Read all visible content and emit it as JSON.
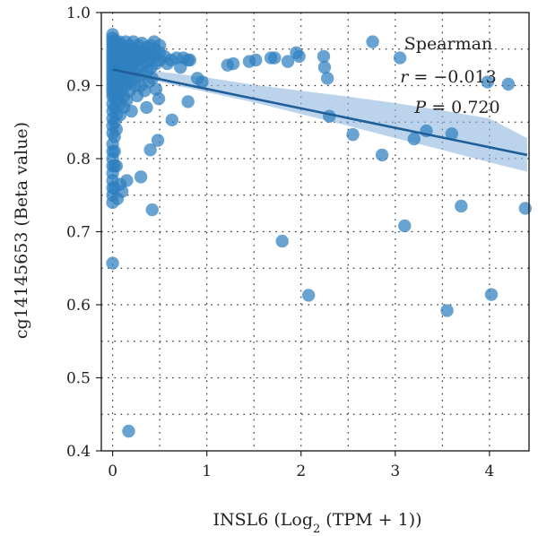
{
  "chart_data": {
    "type": "scatter",
    "xlabel": "INSL6 (Log",
    "xlabel_sub": "2",
    "xlabel_tail": " (TPM + 1))",
    "ylabel": "cg14145653 (Beta value)",
    "xlim": [
      -0.12,
      4.42
    ],
    "ylim": [
      0.4,
      1.0
    ],
    "x_ticks": [
      0,
      1,
      2,
      3,
      4
    ],
    "x_tick_labels": [
      "0",
      "1",
      "2",
      "3",
      "4"
    ],
    "y_ticks": [
      0.4,
      0.5,
      0.6,
      0.7,
      0.8,
      0.9,
      1.0
    ],
    "y_tick_labels": [
      "0.4",
      "0.5",
      "0.6",
      "0.7",
      "0.8",
      "0.9",
      "1.0"
    ],
    "grid": true,
    "annotation": {
      "title": "Spearman",
      "r_label": "r",
      "r_value": " = −0.013",
      "p_label": "P",
      "p_value": " = 0.720"
    },
    "point_color": "#2f7fbf",
    "line_color": "#1f5f99",
    "band_color": "#8fb8de",
    "fit_line": {
      "x": [
        0.0,
        4.4
      ],
      "y": [
        0.922,
        0.805
      ]
    },
    "confidence_band": {
      "x": [
        0.0,
        0.5,
        1.0,
        1.5,
        2.0,
        2.5,
        3.0,
        3.5,
        4.0,
        4.4
      ],
      "lower": [
        0.915,
        0.905,
        0.891,
        0.877,
        0.861,
        0.845,
        0.828,
        0.812,
        0.795,
        0.782
      ],
      "upper": [
        0.929,
        0.919,
        0.911,
        0.901,
        0.893,
        0.885,
        0.876,
        0.866,
        0.855,
        0.828
      ]
    },
    "points": [
      [
        0.0,
        0.97
      ],
      [
        0.0,
        0.965
      ],
      [
        0.0,
        0.96
      ],
      [
        0.0,
        0.955
      ],
      [
        0.0,
        0.95
      ],
      [
        0.0,
        0.945
      ],
      [
        0.0,
        0.94
      ],
      [
        0.0,
        0.935
      ],
      [
        0.0,
        0.93
      ],
      [
        0.0,
        0.925
      ],
      [
        0.0,
        0.92
      ],
      [
        0.0,
        0.915
      ],
      [
        0.0,
        0.91
      ],
      [
        0.0,
        0.905
      ],
      [
        0.0,
        0.9
      ],
      [
        0.0,
        0.895
      ],
      [
        0.0,
        0.89
      ],
      [
        0.0,
        0.885
      ],
      [
        0.0,
        0.875
      ],
      [
        0.0,
        0.865
      ],
      [
        0.0,
        0.855
      ],
      [
        0.0,
        0.845
      ],
      [
        0.0,
        0.835
      ],
      [
        0.0,
        0.82
      ],
      [
        0.0,
        0.81
      ],
      [
        0.0,
        0.8
      ],
      [
        0.0,
        0.79
      ],
      [
        0.0,
        0.78
      ],
      [
        0.0,
        0.77
      ],
      [
        0.0,
        0.76
      ],
      [
        0.0,
        0.75
      ],
      [
        0.0,
        0.74
      ],
      [
        0.0,
        0.657
      ],
      [
        0.02,
        0.962
      ],
      [
        0.02,
        0.95
      ],
      [
        0.02,
        0.94
      ],
      [
        0.02,
        0.93
      ],
      [
        0.02,
        0.92
      ],
      [
        0.02,
        0.91
      ],
      [
        0.02,
        0.9
      ],
      [
        0.02,
        0.885
      ],
      [
        0.02,
        0.87
      ],
      [
        0.02,
        0.85
      ],
      [
        0.02,
        0.83
      ],
      [
        0.02,
        0.81
      ],
      [
        0.02,
        0.79
      ],
      [
        0.02,
        0.76
      ],
      [
        0.04,
        0.958
      ],
      [
        0.04,
        0.945
      ],
      [
        0.04,
        0.935
      ],
      [
        0.04,
        0.925
      ],
      [
        0.04,
        0.915
      ],
      [
        0.04,
        0.905
      ],
      [
        0.04,
        0.895
      ],
      [
        0.04,
        0.88
      ],
      [
        0.04,
        0.86
      ],
      [
        0.04,
        0.84
      ],
      [
        0.04,
        0.79
      ],
      [
        0.05,
        0.745
      ],
      [
        0.07,
        0.96
      ],
      [
        0.07,
        0.95
      ],
      [
        0.07,
        0.94
      ],
      [
        0.07,
        0.93
      ],
      [
        0.07,
        0.92
      ],
      [
        0.07,
        0.91
      ],
      [
        0.07,
        0.9
      ],
      [
        0.07,
        0.89
      ],
      [
        0.08,
        0.875
      ],
      [
        0.08,
        0.86
      ],
      [
        0.08,
        0.765
      ],
      [
        0.1,
        0.755
      ],
      [
        0.1,
        0.955
      ],
      [
        0.1,
        0.945
      ],
      [
        0.1,
        0.935
      ],
      [
        0.1,
        0.925
      ],
      [
        0.1,
        0.915
      ],
      [
        0.1,
        0.905
      ],
      [
        0.1,
        0.895
      ],
      [
        0.12,
        0.885
      ],
      [
        0.12,
        0.87
      ],
      [
        0.14,
        0.96
      ],
      [
        0.14,
        0.95
      ],
      [
        0.14,
        0.94
      ],
      [
        0.14,
        0.93
      ],
      [
        0.14,
        0.92
      ],
      [
        0.14,
        0.91
      ],
      [
        0.14,
        0.9
      ],
      [
        0.15,
        0.88
      ],
      [
        0.15,
        0.77
      ],
      [
        0.17,
        0.427
      ],
      [
        0.18,
        0.955
      ],
      [
        0.18,
        0.945
      ],
      [
        0.18,
        0.935
      ],
      [
        0.18,
        0.925
      ],
      [
        0.18,
        0.915
      ],
      [
        0.18,
        0.905
      ],
      [
        0.18,
        0.893
      ],
      [
        0.2,
        0.865
      ],
      [
        0.22,
        0.96
      ],
      [
        0.22,
        0.95
      ],
      [
        0.22,
        0.94
      ],
      [
        0.22,
        0.93
      ],
      [
        0.22,
        0.92
      ],
      [
        0.22,
        0.91
      ],
      [
        0.24,
        0.9
      ],
      [
        0.26,
        0.886
      ],
      [
        0.27,
        0.955
      ],
      [
        0.27,
        0.945
      ],
      [
        0.27,
        0.935
      ],
      [
        0.27,
        0.925
      ],
      [
        0.27,
        0.912
      ],
      [
        0.3,
        0.9
      ],
      [
        0.3,
        0.775
      ],
      [
        0.31,
        0.958
      ],
      [
        0.31,
        0.948
      ],
      [
        0.31,
        0.938
      ],
      [
        0.31,
        0.928
      ],
      [
        0.32,
        0.915
      ],
      [
        0.34,
        0.893
      ],
      [
        0.36,
        0.87
      ],
      [
        0.36,
        0.952
      ],
      [
        0.36,
        0.942
      ],
      [
        0.36,
        0.932
      ],
      [
        0.37,
        0.92
      ],
      [
        0.38,
        0.905
      ],
      [
        0.4,
        0.955
      ],
      [
        0.4,
        0.945
      ],
      [
        0.4,
        0.935
      ],
      [
        0.41,
        0.925
      ],
      [
        0.4,
        0.812
      ],
      [
        0.42,
        0.91
      ],
      [
        0.42,
        0.73
      ],
      [
        0.44,
        0.96
      ],
      [
        0.44,
        0.95
      ],
      [
        0.45,
        0.94
      ],
      [
        0.46,
        0.93
      ],
      [
        0.46,
        0.895
      ],
      [
        0.48,
        0.825
      ],
      [
        0.49,
        0.882
      ],
      [
        0.5,
        0.955
      ],
      [
        0.5,
        0.945
      ],
      [
        0.5,
        0.935
      ],
      [
        0.55,
        0.94
      ],
      [
        0.58,
        0.93
      ],
      [
        0.62,
        0.935
      ],
      [
        0.63,
        0.853
      ],
      [
        0.68,
        0.938
      ],
      [
        0.72,
        0.925
      ],
      [
        0.75,
        0.938
      ],
      [
        0.8,
        0.935
      ],
      [
        0.82,
        0.935
      ],
      [
        0.8,
        0.878
      ],
      [
        0.9,
        0.91
      ],
      [
        0.95,
        0.905
      ],
      [
        1.22,
        0.928
      ],
      [
        1.28,
        0.93
      ],
      [
        1.45,
        0.933
      ],
      [
        1.52,
        0.935
      ],
      [
        1.68,
        0.938
      ],
      [
        1.72,
        0.938
      ],
      [
        1.8,
        0.687
      ],
      [
        1.86,
        0.933
      ],
      [
        1.95,
        0.945
      ],
      [
        1.98,
        0.94
      ],
      [
        2.08,
        0.613
      ],
      [
        2.24,
        0.94
      ],
      [
        2.25,
        0.925
      ],
      [
        2.28,
        0.91
      ],
      [
        2.3,
        0.858
      ],
      [
        2.55,
        0.833
      ],
      [
        2.76,
        0.96
      ],
      [
        2.86,
        0.805
      ],
      [
        3.05,
        0.938
      ],
      [
        3.1,
        0.708
      ],
      [
        3.2,
        0.827
      ],
      [
        3.33,
        0.838
      ],
      [
        3.55,
        0.592
      ],
      [
        3.6,
        0.834
      ],
      [
        3.7,
        0.735
      ],
      [
        3.98,
        0.905
      ],
      [
        4.02,
        0.614
      ],
      [
        4.2,
        0.902
      ],
      [
        4.38,
        0.732
      ]
    ]
  }
}
